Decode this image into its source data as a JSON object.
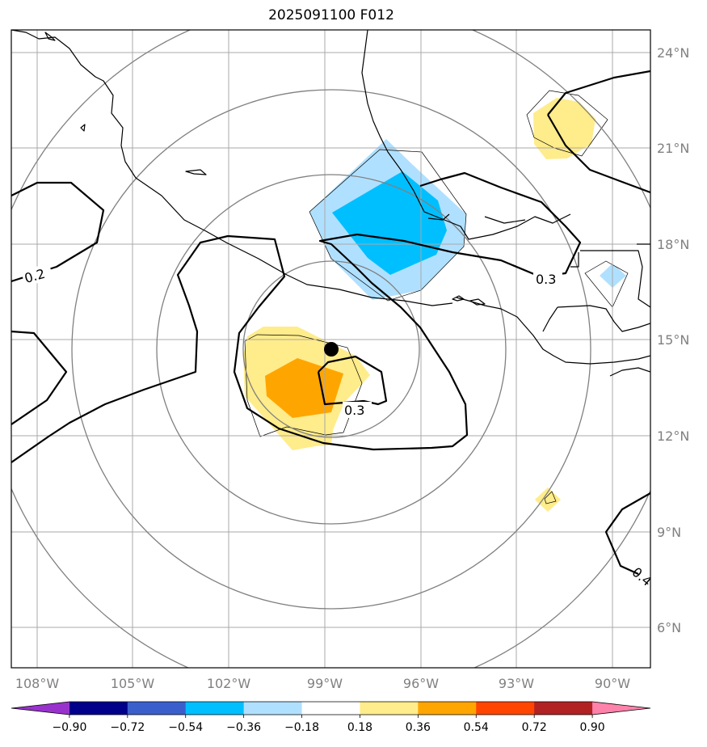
{
  "chart_data": {
    "type": "heatmap",
    "title": "2025091100 F012",
    "projection": "map",
    "lon_ticks": [
      "108°W",
      "105°W",
      "102°W",
      "99°W",
      "96°W",
      "93°W",
      "90°W"
    ],
    "lat_ticks": [
      "24°N",
      "21°N",
      "18°N",
      "15°N",
      "12°N",
      "9°N",
      "6°N"
    ],
    "colorbar": {
      "levels": [
        "−0.90",
        "−0.72",
        "−0.54",
        "−0.36",
        "−0.18",
        "0.18",
        "0.36",
        "0.54",
        "0.72",
        "0.90"
      ],
      "colors": [
        "#9932cc",
        "#00008b",
        "#3a5fcd",
        "#00bfff",
        "#b0e0ff",
        "#ffffff",
        "#ffec8b",
        "#ffa500",
        "#ff4500",
        "#b22222",
        "#ff82ab"
      ],
      "extend": "both"
    },
    "contour_labels": [
      "0.2",
      "0.3",
      "0.3",
      "0.4"
    ],
    "storm_center": {
      "lon": -98.7,
      "lat": 14.7
    },
    "shaded_regions": [
      {
        "name": "negative-anomaly-north",
        "center_lon": -96.5,
        "center_lat": 18.5,
        "min_level": "−0.36"
      },
      {
        "name": "positive-anomaly-south",
        "center_lon": -100.0,
        "center_lat": 13.7,
        "max_level": "0.54"
      },
      {
        "name": "positive-anomaly-northeast",
        "center_lon": -91.5,
        "center_lat": 21.5,
        "max_level": "0.36"
      },
      {
        "name": "positive-anomaly-southeast",
        "center_lon": -91.8,
        "center_lat": 10.0,
        "max_level": "0.36"
      },
      {
        "name": "negative-anomaly-east",
        "center_lon": -90.0,
        "center_lat": 17.0,
        "min_level": "−0.36"
      }
    ]
  }
}
